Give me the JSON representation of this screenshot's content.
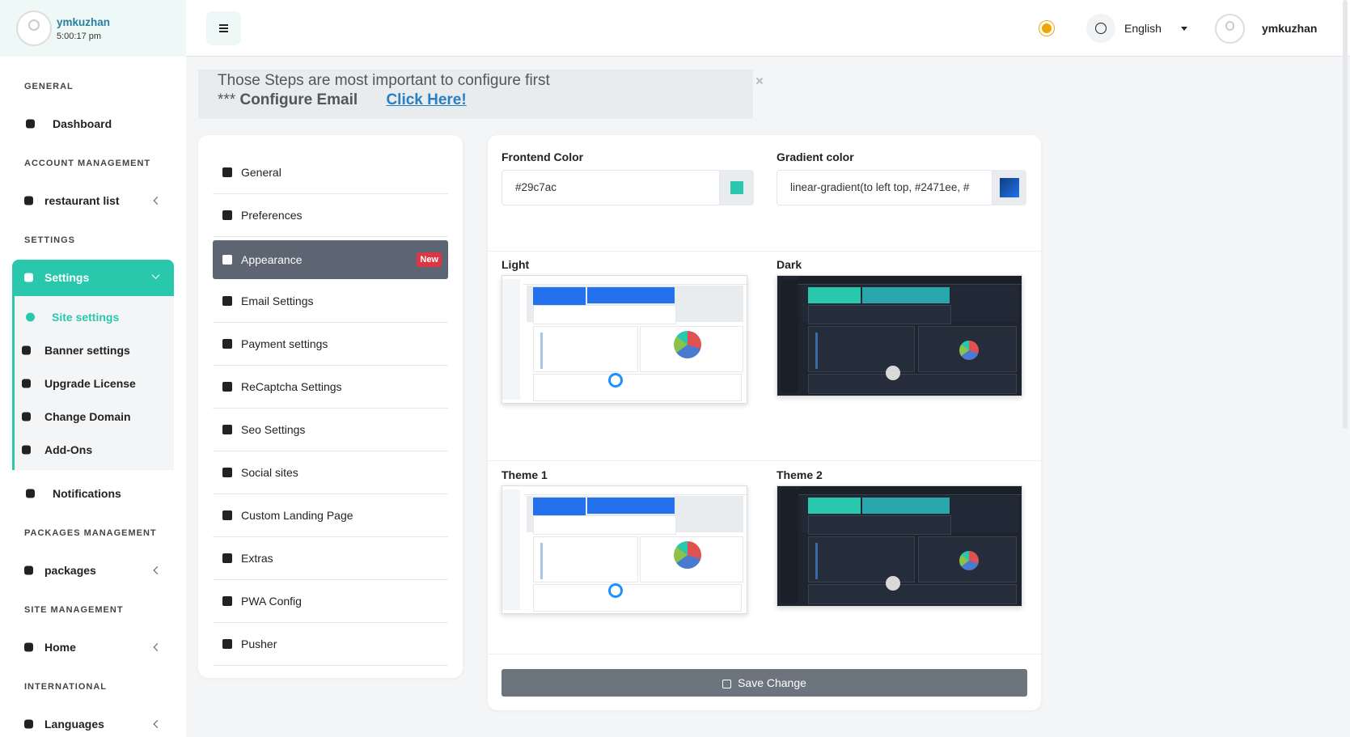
{
  "sidebar": {
    "user": {
      "name": "ymkuzhan",
      "time": "5:00:17 pm"
    },
    "groups": [
      {
        "heading": "GENERAL",
        "items": [
          {
            "label": "Dashboard"
          }
        ]
      },
      {
        "heading": "ACCOUNT MANAGEMENT",
        "items": [
          {
            "label": "restaurant list",
            "submenu": true
          }
        ]
      },
      {
        "heading": "SETTINGS",
        "items": [
          {
            "label": "Settings",
            "submenu": true,
            "active": true,
            "children": [
              "Site settings",
              "Banner settings",
              "Upgrade License",
              "Change Domain",
              "Add-Ons"
            ]
          },
          {
            "label": "Notifications"
          }
        ]
      },
      {
        "heading": "PACKAGES MANAGEMENT",
        "items": [
          {
            "label": "packages",
            "submenu": true
          }
        ]
      },
      {
        "heading": "SITE MANAGEMENT",
        "items": [
          {
            "label": "Home",
            "submenu": true
          }
        ]
      },
      {
        "heading": "INTERNATIONAL",
        "items": [
          {
            "label": "Languages",
            "submenu": true
          }
        ]
      }
    ]
  },
  "topbar": {
    "language": "English",
    "user": "ymkuzhan"
  },
  "alert": {
    "line1": "Those Steps are most important to configure first",
    "prefix": "***",
    "configure": "Configure Email",
    "link": "Click Here!"
  },
  "settings_menu": {
    "items": [
      "General",
      "Preferences",
      "Appearance",
      "Email Settings",
      "Payment settings",
      "ReCaptcha Settings",
      "Seo Settings",
      "Social sites",
      "Custom Landing Page",
      "Extras",
      "PWA Config",
      "Pusher"
    ],
    "active": 2,
    "badge": "New"
  },
  "appearance": {
    "frontend_color": {
      "label": "Frontend Color",
      "value": "#29c7ac"
    },
    "gradient_color": {
      "label": "Gradient color",
      "value": "linear-gradient(to left top, #2471ee, #"
    },
    "themes": [
      {
        "name": "Light",
        "dark": false
      },
      {
        "name": "Dark",
        "dark": true
      },
      {
        "name": "Theme 1",
        "dark": false
      },
      {
        "name": "Theme 2",
        "dark": true
      }
    ],
    "save": "Save Change"
  }
}
